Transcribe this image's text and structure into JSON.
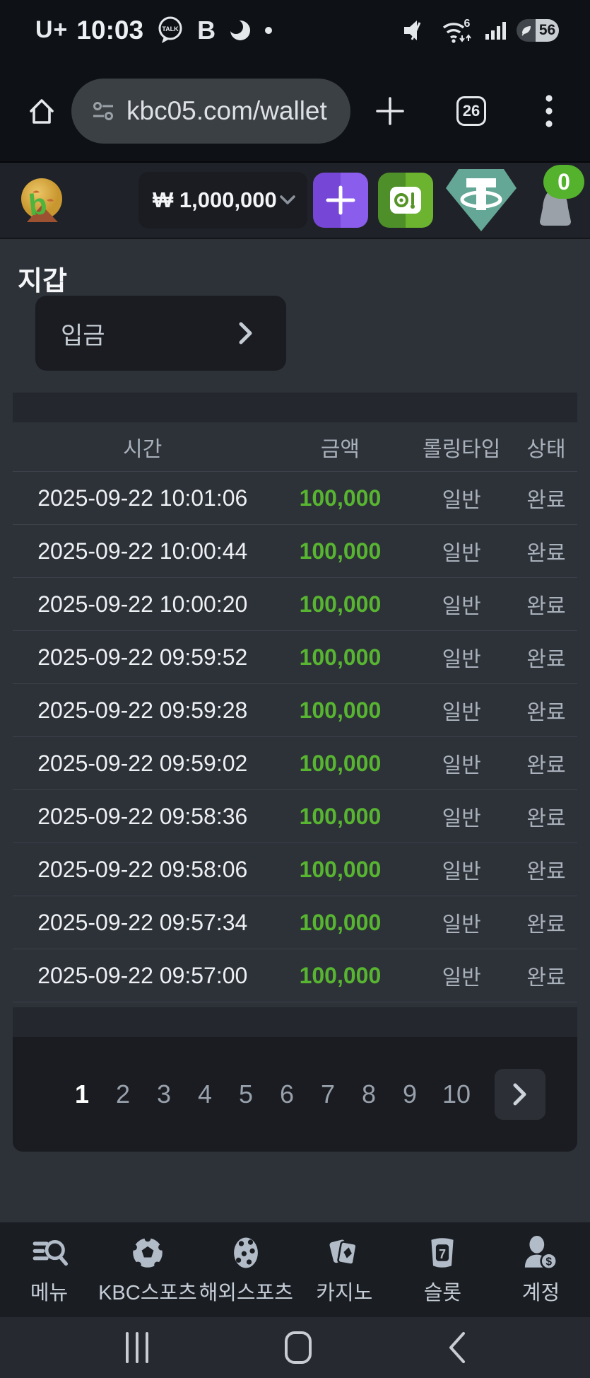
{
  "status_bar": {
    "carrier": "U+",
    "time": "10:03",
    "battery_level": "56",
    "left_icons": [
      "kakaotalk-icon",
      "b-app-icon",
      "swoosh-icon",
      "notification-dot"
    ],
    "right_icons": [
      "mute-icon",
      "wifi6-icon",
      "signal-icon",
      "battery-icon"
    ]
  },
  "browser": {
    "url": "kbc05.com/wallet",
    "tab_count": "26"
  },
  "site_header": {
    "balance": "₩ 1,000,000",
    "notification_count": "0"
  },
  "page": {
    "title": "지갑",
    "deposit_label": "입금"
  },
  "table": {
    "headers": [
      "시간",
      "금액",
      "롤링타입",
      "상태"
    ],
    "rows": [
      {
        "time": "2025-09-22 10:01:06",
        "amount": "100,000",
        "type": "일반",
        "status": "완료"
      },
      {
        "time": "2025-09-22 10:00:44",
        "amount": "100,000",
        "type": "일반",
        "status": "완료"
      },
      {
        "time": "2025-09-22 10:00:20",
        "amount": "100,000",
        "type": "일반",
        "status": "완료"
      },
      {
        "time": "2025-09-22 09:59:52",
        "amount": "100,000",
        "type": "일반",
        "status": "완료"
      },
      {
        "time": "2025-09-22 09:59:28",
        "amount": "100,000",
        "type": "일반",
        "status": "완료"
      },
      {
        "time": "2025-09-22 09:59:02",
        "amount": "100,000",
        "type": "일반",
        "status": "완료"
      },
      {
        "time": "2025-09-22 09:58:36",
        "amount": "100,000",
        "type": "일반",
        "status": "완료"
      },
      {
        "time": "2025-09-22 09:58:06",
        "amount": "100,000",
        "type": "일반",
        "status": "완료"
      },
      {
        "time": "2025-09-22 09:57:34",
        "amount": "100,000",
        "type": "일반",
        "status": "완료"
      },
      {
        "time": "2025-09-22 09:57:00",
        "amount": "100,000",
        "type": "일반",
        "status": "완료"
      }
    ]
  },
  "pagination": {
    "pages": [
      "1",
      "2",
      "3",
      "4",
      "5",
      "6",
      "7",
      "8",
      "9",
      "10"
    ],
    "active_page": "1"
  },
  "bottom_nav": {
    "items": [
      {
        "label": "메뉴",
        "icon": "menu-search-icon"
      },
      {
        "label": "KBC스포츠",
        "icon": "soccer-ball-icon"
      },
      {
        "label": "해외스포츠",
        "icon": "overseas-ball-icon"
      },
      {
        "label": "카지노",
        "icon": "casino-cards-icon"
      },
      {
        "label": "슬롯",
        "icon": "slot-machine-icon"
      },
      {
        "label": "계정",
        "icon": "account-icon"
      }
    ]
  },
  "android_nav": {
    "icons": [
      "recents-icon",
      "home-icon",
      "back-icon"
    ]
  },
  "colors": {
    "amount_green": "#58b531",
    "badge_green": "#54b22c",
    "deposit_purple": "#8a5ded",
    "vault_green": "#6cb32f",
    "tether_teal": "#64a796",
    "page_bg": "#2d3138",
    "panel_bg": "#1a1c21"
  }
}
